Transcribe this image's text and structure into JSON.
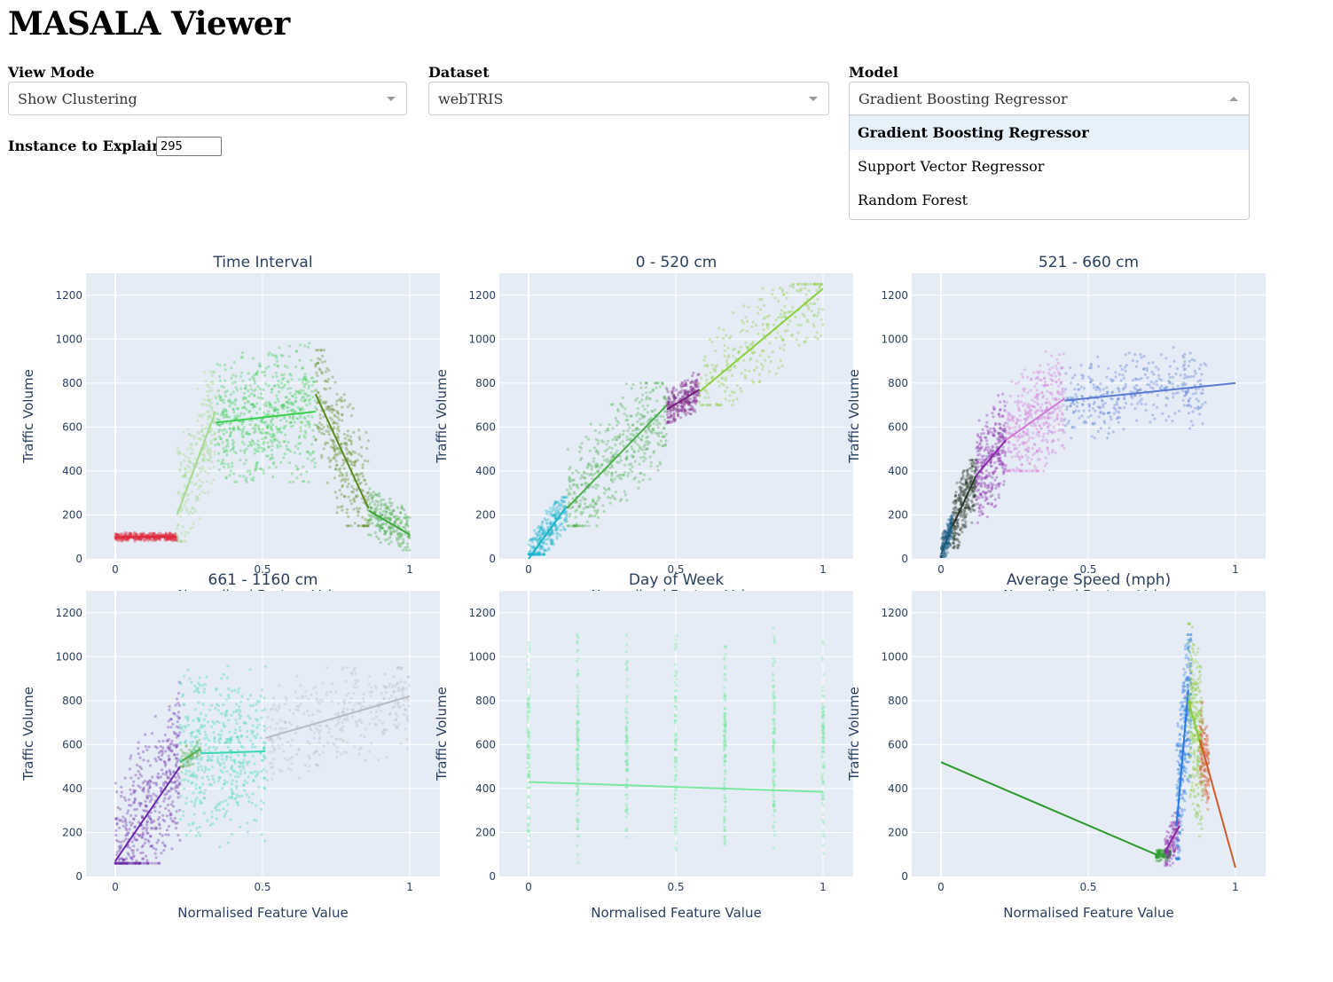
{
  "app": {
    "title": "MASALA Viewer"
  },
  "controls": {
    "view_mode": {
      "label": "View Mode",
      "value": "Show Clustering"
    },
    "dataset": {
      "label": "Dataset",
      "value": "webTRIS"
    },
    "model": {
      "label": "Model",
      "value": "Gradient Boosting Regressor",
      "options": [
        "Gradient Boosting Regressor",
        "Support Vector Regressor",
        "Random Forest"
      ]
    },
    "instance": {
      "label": "Instance to Explain:",
      "value": "295"
    }
  },
  "chart_data": [
    {
      "type": "scatter",
      "title": "Time Interval",
      "xlabel": "Normalised Feature Value",
      "ylabel": "Traffic Volume",
      "xlim": [
        0,
        1
      ],
      "ylim": [
        0,
        1300
      ],
      "xticks": [
        "0",
        "0.5",
        "1"
      ],
      "yticks": [
        "0",
        "200",
        "400",
        "600",
        "800",
        "1000",
        "1200"
      ],
      "clusters": [
        {
          "color": "#e0283c",
          "x": [
            0,
            0.21
          ],
          "y": [
            80,
            125
          ],
          "fit": [
            [
              0,
              100
            ],
            [
              0.21,
              100
            ]
          ],
          "n": 320
        },
        {
          "color": "#a2d98c",
          "x": [
            0.21,
            0.34
          ],
          "y": [
            80,
            850
          ],
          "fit": [
            [
              0.21,
              200
            ],
            [
              0.34,
              670
            ]
          ],
          "n": 260
        },
        {
          "color": "#3ccf50",
          "x": [
            0.34,
            0.68
          ],
          "y": [
            350,
            1100
          ],
          "fit": [
            [
              0.34,
              620
            ],
            [
              0.68,
              670
            ]
          ],
          "n": 650
        },
        {
          "color": "#5a8a1e",
          "x": [
            0.68,
            0.86
          ],
          "y": [
            150,
            950
          ],
          "fit": [
            [
              0.68,
              750
            ],
            [
              0.86,
              230
            ]
          ],
          "n": 330
        },
        {
          "color": "#3ea83a",
          "x": [
            0.86,
            1
          ],
          "y": [
            40,
            320
          ],
          "fit": [
            [
              0.86,
              220
            ],
            [
              1,
              110
            ]
          ],
          "n": 220
        }
      ]
    },
    {
      "type": "scatter",
      "title": "0 - 520 cm",
      "xlabel": "Normalised Feature Value",
      "ylabel": "Traffic Volume",
      "xlim": [
        0,
        1
      ],
      "ylim": [
        0,
        1300
      ],
      "xticks": [
        "0",
        "0.5",
        "1"
      ],
      "yticks": [
        "0",
        "200",
        "400",
        "600",
        "800",
        "1000",
        "1200"
      ],
      "clusters": [
        {
          "color": "#19b4cc",
          "x": [
            0,
            0.13
          ],
          "y": [
            20,
            280
          ],
          "fit": [
            [
              0,
              0
            ],
            [
              0.13,
              240
            ]
          ],
          "n": 300
        },
        {
          "color": "#4cae4c",
          "x": [
            0.13,
            0.47
          ],
          "y": [
            150,
            800
          ],
          "fit": [
            [
              0.13,
              230
            ],
            [
              0.47,
              700
            ]
          ],
          "n": 500
        },
        {
          "color": "#7a1f82",
          "x": [
            0.47,
            0.58
          ],
          "y": [
            620,
            860
          ],
          "fit": [
            [
              0.47,
              680
            ],
            [
              0.58,
              770
            ]
          ],
          "n": 260
        },
        {
          "color": "#8ccf3c",
          "x": [
            0.58,
            1
          ],
          "y": [
            700,
            1250
          ],
          "fit": [
            [
              0.58,
              760
            ],
            [
              1,
              1230
            ]
          ],
          "n": 300
        }
      ]
    },
    {
      "type": "scatter",
      "title": "521 - 660 cm",
      "xlabel": "Normalised Feature Value",
      "ylabel": "Traffic Volume",
      "xlim": [
        0,
        1
      ],
      "ylim": [
        0,
        1300
      ],
      "xticks": [
        "0",
        "0.5",
        "1"
      ],
      "yticks": [
        "0",
        "200",
        "400",
        "600",
        "800",
        "1000",
        "1200"
      ],
      "clusters": [
        {
          "color": "#1a5a7a",
          "x": [
            0,
            0.04
          ],
          "y": [
            10,
            200
          ],
          "fit": [
            [
              0,
              20
            ],
            [
              0.04,
              160
            ]
          ],
          "n": 200
        },
        {
          "color": "#2a3a2a",
          "x": [
            0.04,
            0.12
          ],
          "y": [
            50,
            450
          ],
          "fit": [
            [
              0.04,
              150
            ],
            [
              0.12,
              380
            ]
          ],
          "n": 300
        },
        {
          "color": "#8a2aa8",
          "x": [
            0.12,
            0.22
          ],
          "y": [
            150,
            750
          ],
          "fit": [
            [
              0.12,
              380
            ],
            [
              0.22,
              540
            ]
          ],
          "n": 320
        },
        {
          "color": "#d07ad8",
          "x": [
            0.22,
            0.42
          ],
          "y": [
            400,
            1050
          ],
          "fit": [
            [
              0.22,
              540
            ],
            [
              0.42,
              730
            ]
          ],
          "n": 420
        },
        {
          "color": "#5a7ad0",
          "x": [
            0.42,
            0.9
          ],
          "y": [
            550,
            1000
          ],
          "fit": [
            [
              0.42,
              720
            ],
            [
              1,
              800
            ]
          ],
          "n": 380
        }
      ]
    },
    {
      "type": "scatter",
      "title": "661 - 1160 cm",
      "xlabel": "Normalised Feature Value",
      "ylabel": "Traffic Volume",
      "xlim": [
        0,
        1
      ],
      "ylim": [
        0,
        1300
      ],
      "xticks": [
        "0",
        "0.5",
        "1"
      ],
      "yticks": [
        "0",
        "200",
        "400",
        "600",
        "800",
        "1000",
        "1200"
      ],
      "clusters": [
        {
          "color": "#6a2aa8",
          "x": [
            0,
            0.22
          ],
          "y": [
            60,
            1000
          ],
          "fit": [
            [
              0,
              70
            ],
            [
              0.22,
              500
            ]
          ],
          "n": 520
        },
        {
          "color": "#5aa83a",
          "x": [
            0.22,
            0.29
          ],
          "y": [
            500,
            640
          ],
          "fit": [
            [
              0.22,
              520
            ],
            [
              0.29,
              580
            ]
          ],
          "n": 60
        },
        {
          "color": "#38d8b8",
          "x": [
            0.22,
            0.51
          ],
          "y": [
            80,
            1050
          ],
          "fit": [
            [
              0.29,
              560
            ],
            [
              0.51,
              570
            ]
          ],
          "n": 480
        },
        {
          "color": "#b8bcc8",
          "x": [
            0.51,
            1
          ],
          "y": [
            350,
            950
          ],
          "fit": [
            [
              0.51,
              630
            ],
            [
              1,
              820
            ]
          ],
          "n": 360
        }
      ]
    },
    {
      "type": "scatter",
      "title": "Day of Week",
      "xlabel": "Normalised Feature Value",
      "ylabel": "Traffic Volume",
      "xlim": [
        0,
        1
      ],
      "ylim": [
        0,
        1300
      ],
      "xticks": [
        "0",
        "0.5",
        "1"
      ],
      "yticks": [
        "0",
        "200",
        "400",
        "600",
        "800",
        "1000",
        "1200"
      ],
      "columns": [
        0,
        0.1667,
        0.3333,
        0.5,
        0.6667,
        0.8333,
        1
      ],
      "clusters": [
        {
          "color": "#7ae8a0",
          "x": [
            0,
            1
          ],
          "y": [
            40,
            1150
          ],
          "fit": [
            [
              0,
              430
            ],
            [
              1,
              385
            ]
          ],
          "n": 700
        }
      ]
    },
    {
      "type": "scatter",
      "title": "Average Speed (mph)",
      "xlabel": "Normalised Feature Value",
      "ylabel": "Traffic Volume",
      "xlim": [
        0,
        1
      ],
      "ylim": [
        0,
        1300
      ],
      "xticks": [
        "0",
        "0.5",
        "1"
      ],
      "yticks": [
        "0",
        "200",
        "400",
        "600",
        "800",
        "1000",
        "1200"
      ],
      "clusters": [
        {
          "color": "#2a9a2a",
          "x": [
            0.73,
            0.78
          ],
          "y": [
            50,
            120
          ],
          "fit": [
            [
              0,
              520
            ],
            [
              0.73,
              100
            ]
          ],
          "n": 120
        },
        {
          "color": "#8a2aa8",
          "x": [
            0.76,
            0.81
          ],
          "y": [
            50,
            350
          ],
          "fit": [
            [
              0.76,
              110
            ],
            [
              0.81,
              230
            ]
          ],
          "n": 140
        },
        {
          "color": "#2a7ae0",
          "x": [
            0.8,
            0.85
          ],
          "y": [
            80,
            1100
          ],
          "fit": [
            [
              0.8,
              230
            ],
            [
              0.84,
              850
            ]
          ],
          "n": 320
        },
        {
          "color": "#8acc38",
          "x": [
            0.84,
            0.89
          ],
          "y": [
            150,
            1150
          ],
          "fit": [
            [
              0.84,
              800
            ],
            [
              0.89,
              560
            ]
          ],
          "n": 300
        },
        {
          "color": "#d05a28",
          "x": [
            0.88,
            0.91
          ],
          "y": [
            300,
            800
          ],
          "fit": [
            [
              0.88,
              620
            ],
            [
              1,
              40
            ]
          ],
          "n": 140
        }
      ]
    }
  ]
}
